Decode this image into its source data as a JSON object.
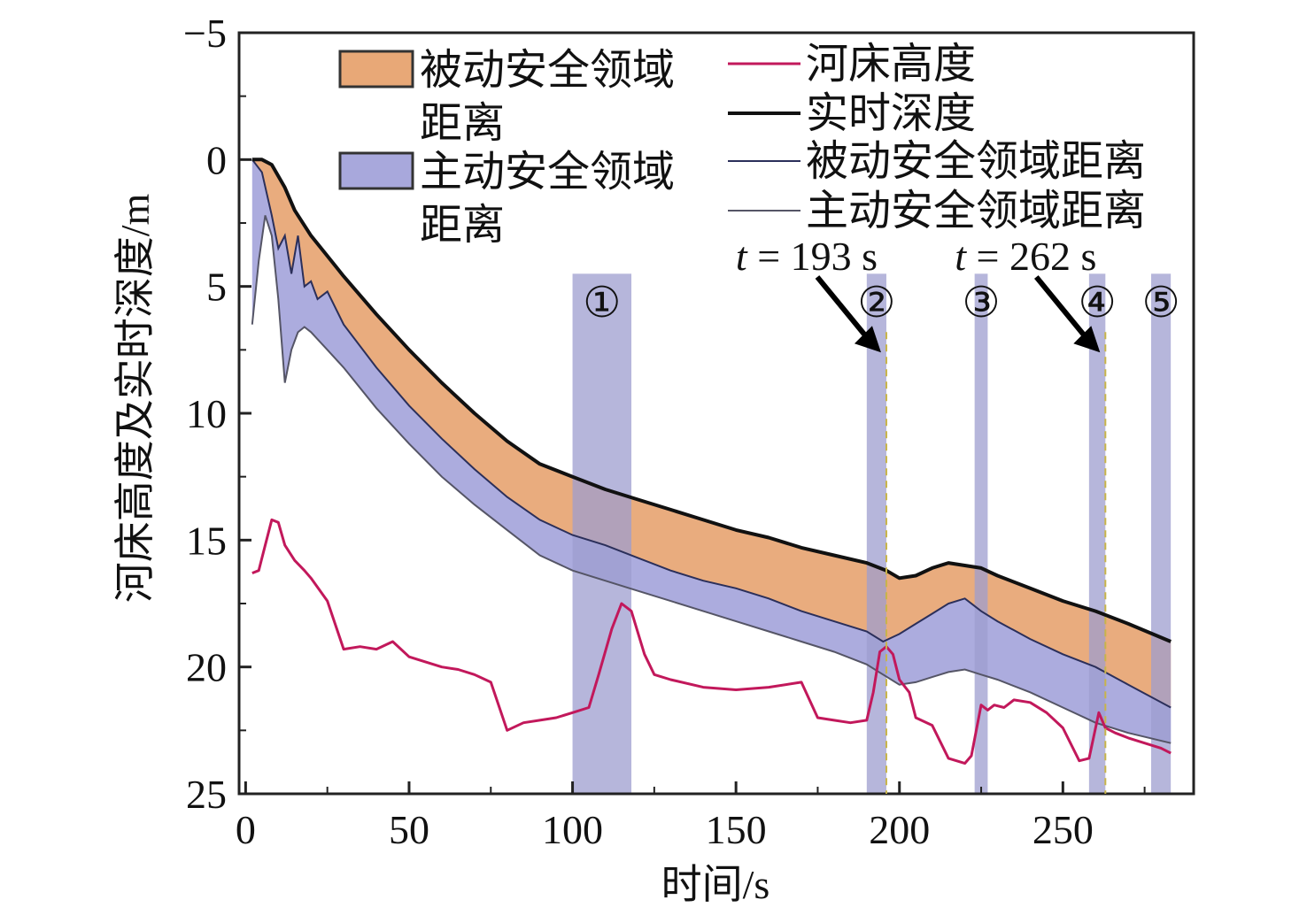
{
  "chart_data": {
    "type": "area",
    "title": "",
    "xlabel": "时间/s",
    "ylabel": "河床高度及实时深度/m",
    "xlim": [
      -2,
      290
    ],
    "ylim": [
      -5,
      25
    ],
    "y_inverted": true,
    "xticks": [
      0,
      50,
      100,
      150,
      200,
      250
    ],
    "yticks": [
      -5,
      0,
      5,
      10,
      15,
      20,
      25
    ],
    "ytick_labels": [
      "−5",
      "0",
      "5",
      "10",
      "15",
      "20",
      "25"
    ],
    "grid": false,
    "legend_position": "top",
    "colors": {
      "passive_fill": "#e8a877",
      "active_fill": "#a8a8dc",
      "riverbed": "#c2185b",
      "depth": "#111111",
      "passive_line": "#2b2f5a",
      "active_line": "#555566",
      "highlight": "#9d9dcf",
      "dashed": "#c8b44a"
    },
    "legend": {
      "passive_area": "被动安全领域",
      "passive_area_2": "距离",
      "active_area": "主动安全领域",
      "active_area_2": "距离",
      "riverbed": "河床高度",
      "depth": "实时深度",
      "passive_line": "被动安全领域距离",
      "active_line": "主动安全领域距离"
    },
    "regions": [
      {
        "label": "①",
        "x0": 100,
        "x1": 118
      },
      {
        "label": "②",
        "x0": 190,
        "x1": 196
      },
      {
        "label": "③",
        "x0": 223,
        "x1": 227
      },
      {
        "label": "④",
        "x0": 258,
        "x1": 263
      },
      {
        "label": "⑤",
        "x0": 277,
        "x1": 283
      }
    ],
    "annotations": [
      {
        "text_t": "t",
        "text_rest": " = 193 s",
        "x": 196
      },
      {
        "text_t": "t",
        "text_rest": " = 262 s",
        "x": 263
      }
    ],
    "series": {
      "depth": {
        "name": "实时深度",
        "x": [
          2,
          5,
          8,
          12,
          15,
          20,
          25,
          30,
          40,
          50,
          60,
          70,
          80,
          90,
          100,
          110,
          120,
          130,
          140,
          150,
          160,
          170,
          180,
          190,
          196,
          200,
          205,
          210,
          215,
          220,
          225,
          230,
          240,
          250,
          260,
          270,
          283
        ],
        "y": [
          0,
          0,
          0.2,
          1.1,
          2.0,
          3.0,
          3.8,
          4.6,
          6.1,
          7.5,
          8.8,
          10.0,
          11.1,
          12.0,
          12.5,
          13.0,
          13.4,
          13.8,
          14.2,
          14.6,
          14.9,
          15.3,
          15.6,
          15.9,
          16.2,
          16.5,
          16.4,
          16.1,
          15.9,
          16.0,
          16.1,
          16.4,
          16.9,
          17.4,
          17.8,
          18.3,
          19.0
        ]
      },
      "passive": {
        "name": "被动安全领域距离",
        "x": [
          2,
          5,
          8,
          10,
          12,
          14,
          16,
          18,
          20,
          22,
          25,
          30,
          40,
          50,
          60,
          70,
          80,
          90,
          100,
          110,
          120,
          130,
          140,
          150,
          160,
          170,
          180,
          190,
          195,
          200,
          205,
          210,
          215,
          220,
          225,
          230,
          240,
          250,
          260,
          270,
          283
        ],
        "y": [
          0,
          0.5,
          2.2,
          3.5,
          3.0,
          4.5,
          3.0,
          5.0,
          4.8,
          5.5,
          5.2,
          6.5,
          8.2,
          9.7,
          11.0,
          12.2,
          13.3,
          14.2,
          14.8,
          15.2,
          15.7,
          16.2,
          16.6,
          16.9,
          17.3,
          17.8,
          18.2,
          18.6,
          19.0,
          18.7,
          18.3,
          17.9,
          17.5,
          17.3,
          17.8,
          18.2,
          18.9,
          19.5,
          20.0,
          20.7,
          21.6
        ]
      },
      "active": {
        "name": "主动安全领域距离",
        "x": [
          2,
          4,
          6,
          8,
          10,
          12,
          14,
          16,
          18,
          20,
          25,
          30,
          40,
          50,
          60,
          70,
          80,
          90,
          100,
          110,
          120,
          130,
          140,
          150,
          160,
          170,
          180,
          190,
          195,
          200,
          205,
          210,
          215,
          220,
          225,
          230,
          240,
          250,
          260,
          270,
          283
        ],
        "y": [
          6.5,
          4.0,
          2.2,
          3.0,
          5.5,
          8.8,
          7.5,
          6.8,
          6.6,
          6.8,
          7.5,
          8.2,
          9.8,
          11.2,
          12.5,
          13.6,
          14.6,
          15.6,
          16.2,
          16.6,
          17.0,
          17.4,
          17.8,
          18.2,
          18.6,
          19.0,
          19.4,
          19.9,
          20.3,
          20.7,
          20.6,
          20.4,
          20.2,
          20.1,
          20.3,
          20.5,
          21.0,
          21.6,
          22.2,
          22.6,
          23.0
        ]
      },
      "riverbed": {
        "name": "河床高度",
        "x": [
          2,
          4,
          6,
          8,
          10,
          12,
          15,
          18,
          20,
          25,
          30,
          35,
          40,
          45,
          50,
          55,
          60,
          65,
          70,
          75,
          80,
          85,
          90,
          95,
          100,
          105,
          108,
          112,
          115,
          118,
          122,
          125,
          130,
          140,
          150,
          160,
          170,
          175,
          180,
          185,
          190,
          192,
          194,
          196,
          198,
          200,
          203,
          205,
          210,
          215,
          220,
          222,
          225,
          227,
          229,
          232,
          235,
          240,
          245,
          250,
          255,
          258,
          261,
          263,
          266,
          270,
          275,
          280,
          283
        ],
        "y": [
          16.3,
          16.2,
          15.2,
          14.2,
          14.3,
          15.2,
          15.8,
          16.2,
          16.5,
          17.4,
          19.3,
          19.2,
          19.3,
          19.0,
          19.6,
          19.8,
          20.0,
          20.1,
          20.3,
          20.6,
          22.5,
          22.2,
          22.1,
          22.0,
          21.8,
          21.6,
          20.3,
          18.5,
          17.5,
          17.8,
          19.5,
          20.3,
          20.5,
          20.8,
          20.9,
          20.8,
          20.6,
          22.0,
          22.1,
          22.2,
          22.1,
          21.0,
          19.4,
          19.2,
          19.5,
          20.5,
          21.0,
          22.0,
          22.3,
          23.6,
          23.8,
          23.5,
          21.5,
          21.7,
          21.5,
          21.6,
          21.3,
          21.4,
          21.8,
          22.4,
          23.7,
          23.6,
          21.8,
          22.4,
          22.6,
          22.8,
          23.0,
          23.2,
          23.4
        ]
      }
    }
  }
}
